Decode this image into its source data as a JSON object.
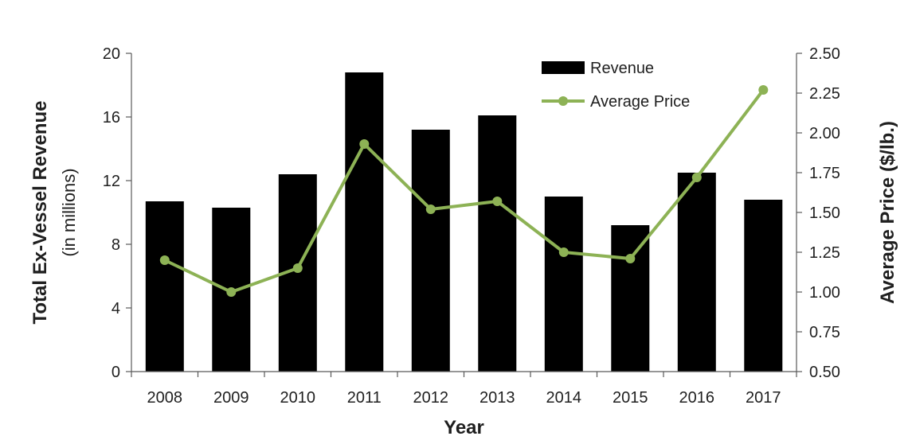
{
  "chart_data": {
    "type": "bar",
    "categories": [
      "2008",
      "2009",
      "2010",
      "2011",
      "2012",
      "2013",
      "2014",
      "2015",
      "2016",
      "2017"
    ],
    "series": [
      {
        "name": "Revenue",
        "type": "bar",
        "axis": "left",
        "values": [
          10.7,
          10.3,
          12.4,
          18.8,
          15.2,
          16.1,
          11.0,
          9.2,
          12.5,
          10.8
        ]
      },
      {
        "name": "Average Price",
        "type": "line",
        "axis": "right",
        "values": [
          1.2,
          1.0,
          1.15,
          1.93,
          1.52,
          1.57,
          1.25,
          1.21,
          1.72,
          2.27
        ]
      }
    ],
    "xlabel": "Year",
    "ylabel": "Total Ex-Vessel Revenue",
    "ylabel_sub": "(in millions)",
    "y2label": "Average Price ($/lb.)",
    "ylim": [
      0,
      20
    ],
    "yticks": [
      "0",
      "4",
      "8",
      "12",
      "16",
      "20"
    ],
    "y2lim": [
      0.5,
      2.5
    ],
    "y2ticks": [
      "0.50",
      "0.75",
      "1.00",
      "1.25",
      "1.50",
      "1.75",
      "2.00",
      "2.25",
      "2.50"
    ],
    "grid": false,
    "legend_position": "top-right",
    "colors": {
      "bar": "#000000",
      "line": "#8db255",
      "axis": "#595959"
    }
  }
}
